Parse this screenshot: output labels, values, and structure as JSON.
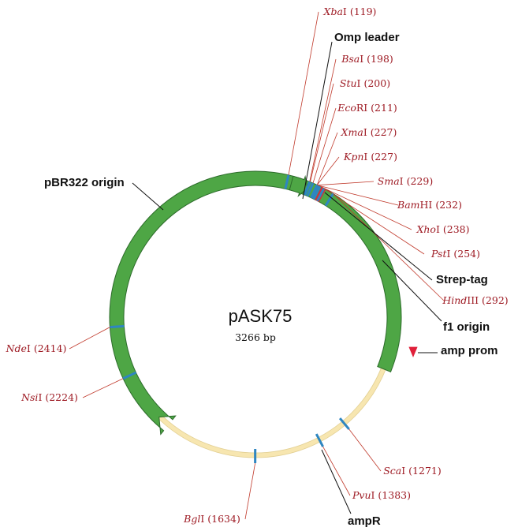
{
  "plasmid": {
    "name": "pASK75",
    "size_label": "3266 bp",
    "length_bp": 3266
  },
  "colors": {
    "backbone": "#f7e6b0",
    "backbone_stroke": "#e2cf92",
    "origin": "#f4955a",
    "origin_stroke": "#c8693a",
    "gene": "#4ea645",
    "gene_stroke": "#2c6b2a",
    "site_tick": "#2e86c1",
    "site_label": "#9e1b24",
    "site_line": "#c0392b",
    "feature_line": "#111111",
    "promoter": "#e0203a",
    "strep_tag": "#d62b3a"
  },
  "restriction_sites": [
    {
      "name": "Xba",
      "suffix": "I (119)",
      "bp": 119
    },
    {
      "name": "Bsa",
      "suffix": "I (198)",
      "bp": 198
    },
    {
      "name": "Stu",
      "suffix": "I (200)",
      "bp": 200
    },
    {
      "name": "Eco",
      "suffix": "RI (211)",
      "bp": 211
    },
    {
      "name": "Xma",
      "suffix": "I (227)",
      "bp": 227
    },
    {
      "name": "Kpn",
      "suffix": "I (227)",
      "bp": 227
    },
    {
      "name": "Sma",
      "suffix": "I (229)",
      "bp": 229
    },
    {
      "name": "Bam",
      "suffix": "HI (232)",
      "bp": 232
    },
    {
      "name": "Xho",
      "suffix": "I (238)",
      "bp": 238
    },
    {
      "name": "Pst",
      "suffix": "I (254)",
      "bp": 254
    },
    {
      "name": "Hind",
      "suffix": "III (292)",
      "bp": 292
    },
    {
      "name": "Sca",
      "suffix": "I (1271)",
      "bp": 1271
    },
    {
      "name": "Pvu",
      "suffix": "I (1383)",
      "bp": 1383
    },
    {
      "name": "Bgl",
      "suffix": "I (1634)",
      "bp": 1634
    },
    {
      "name": "Nsi",
      "suffix": "I (2224)",
      "bp": 2224
    },
    {
      "name": "Nde",
      "suffix": "I (2414)",
      "bp": 2414
    }
  ],
  "features": [
    {
      "label": "Omp leader",
      "type": "gene"
    },
    {
      "label": "Strep-tag",
      "type": "tag"
    },
    {
      "label": "f1 origin",
      "type": "origin"
    },
    {
      "label": "amp prom",
      "type": "promoter"
    },
    {
      "label": "ampR",
      "type": "gene"
    },
    {
      "label": "pBR322 origin",
      "type": "origin"
    }
  ]
}
